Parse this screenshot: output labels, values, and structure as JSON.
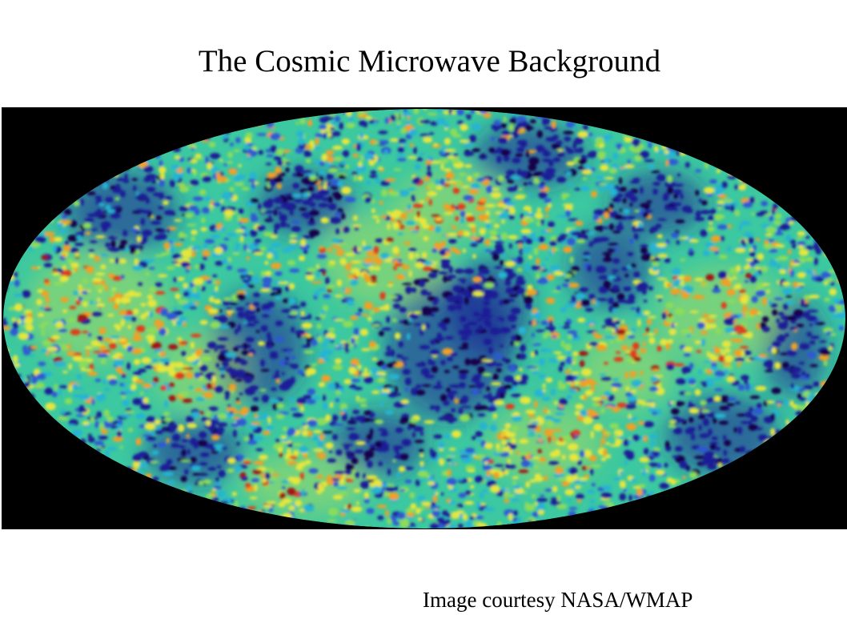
{
  "slide": {
    "title": "The Cosmic Microwave Background",
    "credit": "Image courtesy NASA/WMAP"
  },
  "image": {
    "subject": "cmb-all-sky-map",
    "projection": "mollweide",
    "background_color": "#000000",
    "palette": [
      "#14054a",
      "#1e1e96",
      "#2d5ad2",
      "#28b4d2",
      "#3cc8a0",
      "#8cdc5a",
      "#e6e63c",
      "#f0a028",
      "#e03c1e",
      "#a01414"
    ]
  }
}
